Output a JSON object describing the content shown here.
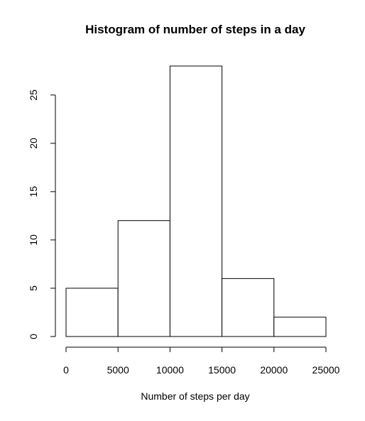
{
  "chart_data": {
    "type": "bar",
    "subtype": "histogram",
    "title": "Histogram of number of steps in a day",
    "xlabel": "Number of steps per day",
    "ylabel": "",
    "bins": [
      {
        "start": 0,
        "end": 5000,
        "count": 5
      },
      {
        "start": 5000,
        "end": 10000,
        "count": 12
      },
      {
        "start": 10000,
        "end": 15000,
        "count": 28
      },
      {
        "start": 15000,
        "end": 20000,
        "count": 6
      },
      {
        "start": 20000,
        "end": 25000,
        "count": 2
      }
    ],
    "xlim": [
      0,
      25000
    ],
    "ylim": [
      0,
      28
    ],
    "x_ticks": [
      0,
      5000,
      10000,
      15000,
      20000,
      25000
    ],
    "x_tick_labels": [
      "0",
      "5000",
      "10000",
      "15000",
      "20000",
      "25000"
    ],
    "y_ticks": [
      0,
      5,
      10,
      15,
      20,
      25
    ],
    "y_tick_labels": [
      "0",
      "5",
      "10",
      "15",
      "20",
      "25"
    ],
    "grid": false,
    "colors": {
      "bar_fill": "#ffffff",
      "bar_stroke": "#000000",
      "background": "#ffffff"
    }
  }
}
